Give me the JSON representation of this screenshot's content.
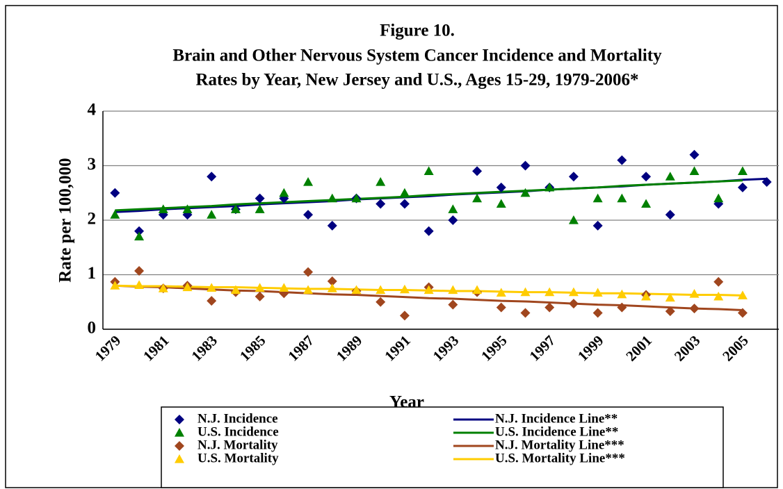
{
  "chart_data": {
    "type": "line",
    "title": [
      "Figure 10.",
      "Brain and Other Nervous System Cancer Incidence and Mortality",
      "Rates by Year, New Jersey and U.S., Ages 15-29, 1979-2006*"
    ],
    "xlabel": "Year",
    "ylabel": "Rate per 100,000",
    "categories": [
      "1979",
      null,
      "1981",
      null,
      "1983",
      null,
      "1985",
      null,
      "1987",
      null,
      "1989",
      null,
      "1991",
      null,
      "1993",
      null,
      "1995",
      null,
      "1997",
      null,
      "1999",
      null,
      "2001",
      null,
      "2003",
      null,
      "2005",
      null
    ],
    "ylim": [
      0,
      4
    ],
    "yticks": [
      0,
      1,
      2,
      3,
      4
    ],
    "grid": true,
    "series": [
      {
        "name": "N.J. Incidence",
        "color": "#000080",
        "marker": "diamond",
        "values": [
          2.5,
          1.8,
          2.1,
          2.1,
          2.8,
          2.2,
          2.4,
          2.4,
          2.1,
          1.9,
          2.4,
          2.3,
          2.3,
          1.8,
          2.0,
          2.9,
          2.6,
          3.0,
          2.6,
          2.8,
          1.9,
          3.1,
          2.8,
          2.1,
          3.2,
          2.3,
          2.6,
          2.7
        ]
      },
      {
        "name": "U.S. Incidence",
        "color": "#008000",
        "marker": "triangle",
        "values": [
          2.1,
          1.7,
          2.2,
          2.2,
          2.1,
          2.2,
          2.2,
          2.5,
          2.7,
          2.4,
          2.4,
          2.7,
          2.5,
          2.9,
          2.2,
          2.4,
          2.3,
          2.5,
          2.6,
          2.0,
          2.4,
          2.4,
          2.3,
          2.8,
          2.9,
          2.4,
          2.9,
          null
        ]
      },
      {
        "name": "N.J. Mortality",
        "color": "#A0461E",
        "marker": "diamond",
        "values": [
          0.87,
          1.07,
          0.75,
          0.8,
          0.52,
          0.68,
          0.6,
          0.66,
          1.05,
          0.88,
          0.7,
          0.5,
          0.25,
          0.77,
          0.45,
          0.68,
          0.4,
          0.3,
          0.4,
          0.47,
          0.3,
          0.4,
          0.63,
          0.33,
          0.38,
          0.87,
          0.3,
          null
        ]
      },
      {
        "name": "U.S. Mortality",
        "color": "#FFCC00",
        "marker": "triangle",
        "values": [
          0.8,
          0.81,
          0.75,
          0.77,
          0.76,
          0.72,
          0.76,
          0.76,
          0.72,
          0.75,
          0.72,
          0.72,
          0.73,
          0.72,
          0.72,
          0.72,
          0.67,
          0.68,
          0.68,
          0.68,
          0.67,
          0.64,
          0.6,
          0.58,
          0.65,
          0.6,
          0.62,
          null
        ]
      },
      {
        "name": "N.J. Incidence Line**",
        "color": "#000080",
        "marker": "line",
        "values": [
          2.15,
          2.17,
          2.2,
          2.22,
          2.24,
          2.26,
          2.29,
          2.31,
          2.33,
          2.35,
          2.38,
          2.4,
          2.42,
          2.44,
          2.47,
          2.49,
          2.51,
          2.53,
          2.56,
          2.58,
          2.6,
          2.62,
          2.65,
          2.67,
          2.69,
          2.71,
          2.74,
          2.76
        ]
      },
      {
        "name": "U.S. Incidence Line**",
        "color": "#008000",
        "marker": "line",
        "values": [
          2.18,
          2.2,
          2.22,
          2.24,
          2.26,
          2.29,
          2.31,
          2.33,
          2.35,
          2.37,
          2.39,
          2.41,
          2.43,
          2.46,
          2.48,
          2.5,
          2.52,
          2.54,
          2.56,
          2.58,
          2.6,
          2.63,
          2.65,
          2.67,
          2.69,
          2.71,
          2.73,
          null
        ]
      },
      {
        "name": "N.J. Mortality Line***",
        "color": "#A0461E",
        "marker": "line",
        "values": [
          0.8,
          0.78,
          0.77,
          0.75,
          0.73,
          0.71,
          0.7,
          0.68,
          0.66,
          0.64,
          0.63,
          0.61,
          0.59,
          0.57,
          0.56,
          0.54,
          0.52,
          0.51,
          0.49,
          0.47,
          0.45,
          0.44,
          0.42,
          0.4,
          0.38,
          0.37,
          0.35,
          null
        ]
      },
      {
        "name": "U.S. Mortality Line***",
        "color": "#FFCC00",
        "marker": "line",
        "values": [
          0.8,
          0.79,
          0.79,
          0.78,
          0.77,
          0.77,
          0.76,
          0.75,
          0.74,
          0.74,
          0.73,
          0.72,
          0.72,
          0.71,
          0.7,
          0.7,
          0.69,
          0.68,
          0.68,
          0.67,
          0.66,
          0.66,
          0.65,
          0.64,
          0.63,
          0.63,
          0.62,
          null
        ]
      }
    ]
  }
}
